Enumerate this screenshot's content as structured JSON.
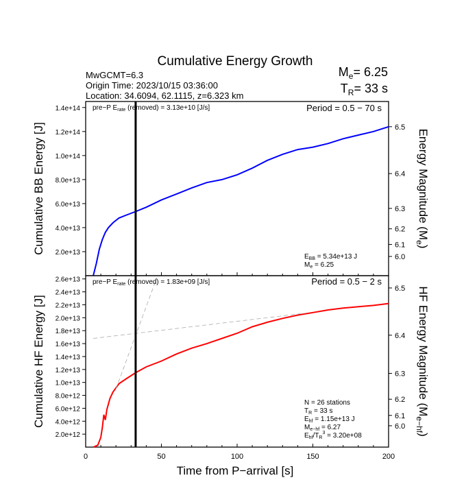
{
  "chart_data": [
    {
      "type": "line",
      "title": "Cumulative Energy Growth",
      "ylabel": "Cumulative BB Energy [J]",
      "y2label": "Energy Magnitude (Me)",
      "xlim": [
        0,
        200
      ],
      "ylim": [
        0,
        145000000000000.0
      ],
      "yticks": [
        20000000000000.0,
        40000000000000.0,
        60000000000000.0,
        80000000000000.0,
        100000000000000.0,
        120000000000000.0,
        140000000000000.0
      ],
      "ytick_labels": [
        "2.0e+13",
        "4.0e+13",
        "6.0e+13",
        "8.0e+13",
        "1.0e+14",
        "1.2e+14",
        "1.4e+14"
      ],
      "y2ticks": [
        {
          "v": 6.5,
          "y": 124000000000000.0
        },
        {
          "v": 6.4,
          "y": 85000000000000.0
        },
        {
          "v": 6.3,
          "y": 56000000000000.0
        },
        {
          "v": 6.2,
          "y": 39000000000000.0
        },
        {
          "v": 6.1,
          "y": 26000000000000.0
        },
        {
          "v": 6.0,
          "y": 16000000000000.0
        }
      ],
      "y2tick_labels": [
        "6.5",
        "6.4",
        "6.3",
        "6.2",
        "6.1",
        "6.0"
      ],
      "series": [
        {
          "name": "BB energy",
          "color": "#0000ff",
          "x": [
            5,
            7,
            9,
            11,
            13,
            15,
            18,
            22,
            27,
            33,
            40,
            50,
            60,
            70,
            80,
            90,
            100,
            110,
            120,
            130,
            140,
            150,
            160,
            170,
            180,
            190,
            200
          ],
          "y": [
            0,
            10000000000000.0,
            22000000000000.0,
            30000000000000.0,
            36000000000000.0,
            40000000000000.0,
            44000000000000.0,
            48000000000000.0,
            50500000000000.0,
            53400000000000.0,
            57000000000000.0,
            63000000000000.0,
            68000000000000.0,
            73000000000000.0,
            77500000000000.0,
            80000000000000.0,
            84000000000000.0,
            89500000000000.0,
            96000000000000.0,
            101000000000000.0,
            105000000000000.0,
            107000000000000.0,
            110000000000000.0,
            114000000000000.0,
            117000000000000.0,
            120000000000000.0,
            124000000000000.0
          ]
        }
      ],
      "tr": 33,
      "annotations": {
        "prep": "pre−P E",
        "prep_sub": "rate",
        "prep_val": " (removed) = 3.13e+10 [J/s]",
        "period": "Period = 0.5 − 70 s",
        "ebb": "E",
        "ebb_sub": "BB",
        "ebb_val": " = 5.34e+13 J",
        "me": "M",
        "me_sub": "e",
        "me_val": " = 6.25"
      }
    },
    {
      "type": "line",
      "ylabel": "Cumulative HF Energy [J]",
      "y2label": "HF Energy Magnitude (Me-hf)",
      "xlabel": "Time from P−arrival [s]",
      "xlim": [
        0,
        200
      ],
      "ylim": [
        0,
        26500000000000.0
      ],
      "xticks": [
        0,
        50,
        100,
        150,
        200
      ],
      "xtick_labels": [
        "0",
        "50",
        "100",
        "150",
        "200"
      ],
      "yticks": [
        2000000000000.0,
        4000000000000.0,
        6000000000000.0,
        8000000000000.0,
        10000000000000.0,
        12000000000000.0,
        14000000000000.0,
        16000000000000.0,
        18000000000000.0,
        20000000000000.0,
        22000000000000.0,
        24000000000000.0,
        26000000000000.0
      ],
      "ytick_labels": [
        "2.0e+12",
        "4.0e+12",
        "6.0e+12",
        "8.0e+12",
        "1.0e+13",
        "1.2e+13",
        "1.4e+13",
        "1.6e+13",
        "1.8e+13",
        "2.0e+13",
        "2.2e+13",
        "2.4e+13",
        "2.6e+13"
      ],
      "y2ticks": [
        {
          "v": 6.5,
          "y": 24600000000000.0
        },
        {
          "v": 6.4,
          "y": 17300000000000.0
        },
        {
          "v": 6.3,
          "y": 11400000000000.0
        },
        {
          "v": 6.2,
          "y": 7400000000000.0
        },
        {
          "v": 6.1,
          "y": 4900000000000.0
        },
        {
          "v": 6.0,
          "y": 3300000000000.0
        }
      ],
      "y2tick_labels": [
        "6.5",
        "6.4",
        "6.3",
        "6.2",
        "6.1",
        "6.0"
      ],
      "series": [
        {
          "name": "HF energy",
          "color": "#ff0000",
          "x": [
            5,
            8,
            10,
            11,
            12,
            13,
            14,
            16,
            18,
            22,
            27,
            33,
            40,
            50,
            60,
            70,
            80,
            90,
            100,
            110,
            120,
            130,
            140,
            150,
            160,
            170,
            180,
            190,
            200
          ],
          "y": [
            0,
            300000000000.0,
            1500000000000.0,
            3000000000000.0,
            5000000000000.0,
            4200000000000.0,
            5800000000000.0,
            7500000000000.0,
            8500000000000.0,
            9800000000000.0,
            10600000000000.0,
            11500000000000.0,
            12400000000000.0,
            13300000000000.0,
            14400000000000.0,
            15300000000000.0,
            16000000000000.0,
            16800000000000.0,
            17600000000000.0,
            18600000000000.0,
            19300000000000.0,
            19900000000000.0,
            20400000000000.0,
            20800000000000.0,
            21200000000000.0,
            21500000000000.0,
            21700000000000.0,
            21900000000000.0,
            22200000000000.0
          ]
        },
        {
          "name": "fit-long",
          "dashed": true,
          "color": "#aaaaaa",
          "x": [
            5,
            145
          ],
          "y": [
            16800000000000.0,
            20700000000000.0
          ]
        },
        {
          "name": "fit-short",
          "dashed": true,
          "color": "#aaaaaa",
          "x": [
            20,
            47
          ],
          "y": [
            9000000000000.0,
            26200000000000.0
          ]
        }
      ],
      "tr": 33,
      "annotations": {
        "prep": "pre−P E",
        "prep_sub": "rate",
        "prep_val": " (removed) = 1.83e+09 [J/s]",
        "period": "Period = 0.5 − 2 s",
        "n": "N = 26 stations",
        "tr_l": "T",
        "tr_sub": "R",
        "tr_val": " = 33  s",
        "ehf": "E",
        "ehf_sub": "hf",
        "ehf_val": " = 1.15e+13 J",
        "mehf": "M",
        "mehf_sub": "e−hf",
        "mehf_val": " = 6.27",
        "ratio": "E",
        "ratio_sub": "hf",
        "ratio_mid": "/T",
        "ratio_sub2": "R",
        "ratio_sup": "3",
        "ratio_val": " =  3.20e+08"
      }
    }
  ],
  "header": {
    "info1": "MwGCMT=6.3",
    "info2": "Origin Time: 2023/10/15 03:36:00",
    "info3": "Location: 34.6094, 62.1115, z=6.323 km",
    "me_l": "M",
    "me_sub": "e",
    "me_val": "= 6.25",
    "tr_l": "T",
    "tr_sub": "R",
    "tr_val": "= 33 s"
  }
}
